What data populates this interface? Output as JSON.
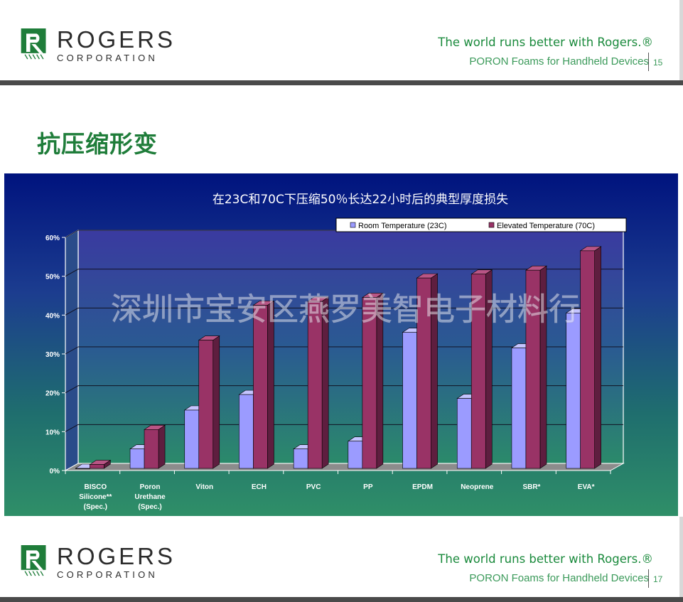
{
  "header": {
    "company_name": "ROGERS",
    "company_sub": "CORPORATION",
    "tagline": "The world runs better with Rogers.®",
    "subtitle": "PORON Foams for Handheld Devices",
    "page_number": "15"
  },
  "footer_header": {
    "company_name": "ROGERS",
    "company_sub": "CORPORATION",
    "tagline": "The world runs better with Rogers.®",
    "subtitle": "PORON Foams for Handheld Devices",
    "page_number": "17"
  },
  "slide": {
    "title": "抗压缩形变"
  },
  "watermark": "深圳市宝安区燕罗美智电子材料行",
  "colors": {
    "brand_green": "#1f7d3a",
    "series_room": "#9b9bff",
    "series_elevated": "#993366"
  },
  "chart_data": {
    "type": "bar",
    "title": "在23C和70C下压缩50％长达22小时后的典型厚度损失",
    "categories": [
      [
        "BISCO",
        "Silicone**",
        "(Spec.)"
      ],
      [
        "Poron",
        "Urethane",
        "(Spec.)"
      ],
      [
        "Viton"
      ],
      [
        "ECH"
      ],
      [
        "PVC"
      ],
      [
        "PP"
      ],
      [
        "EPDM"
      ],
      [
        "Neoprene"
      ],
      [
        "SBR*"
      ],
      [
        "EVA*"
      ]
    ],
    "series": [
      {
        "name": "Room Temperature (23C)",
        "values": [
          0,
          5,
          15,
          19,
          5,
          7,
          35,
          18,
          31,
          40
        ]
      },
      {
        "name": "Elevated Temperature (70C)",
        "values": [
          1,
          10,
          33,
          42,
          43,
          44,
          49,
          50,
          51,
          56
        ]
      }
    ],
    "ylim": [
      0,
      60
    ],
    "yticks": [
      "0%",
      "10%",
      "20%",
      "30%",
      "40%",
      "50%",
      "60%"
    ],
    "grid": true,
    "legend_position": "top-right"
  }
}
